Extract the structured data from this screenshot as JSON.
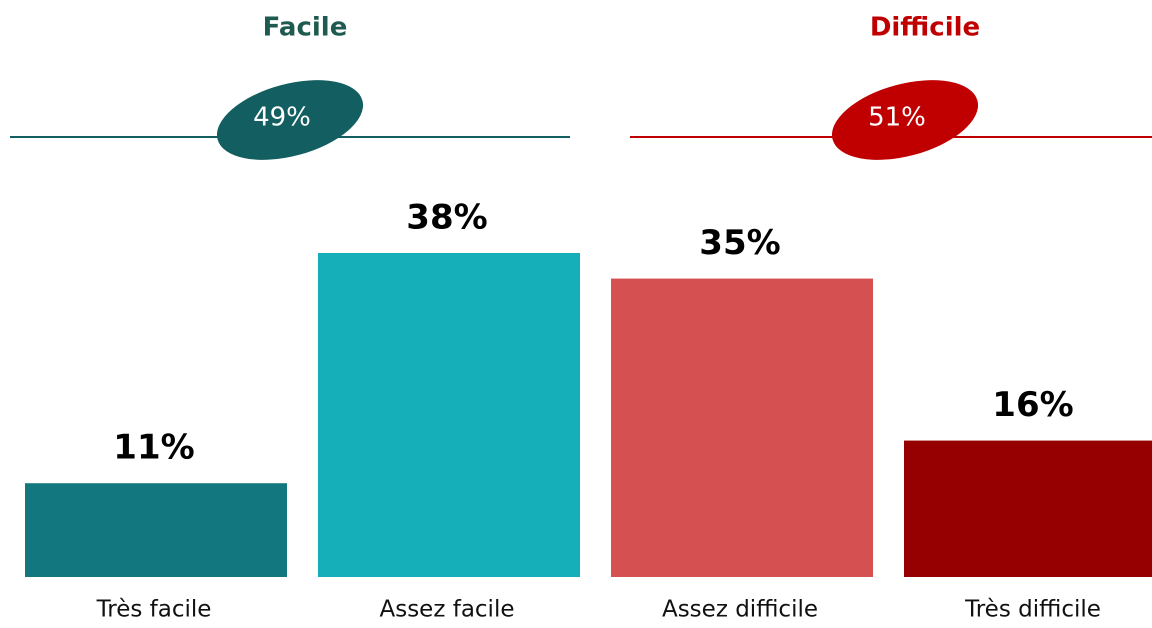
{
  "chart_data": {
    "type": "bar",
    "categories": [
      "Très facile",
      "Assez facile",
      "Assez difficile",
      "Très difficile"
    ],
    "values": [
      11,
      38,
      35,
      16
    ],
    "value_labels": [
      "11%",
      "38%",
      "35%",
      "16%"
    ],
    "colors": [
      "#13777f",
      "#14afb8",
      "#d55050",
      "#960000"
    ],
    "groups": [
      {
        "name": "Facile",
        "value": 49,
        "value_label": "49%",
        "color": "#135e60",
        "title_color": "#1e5a50"
      },
      {
        "name": "Difficile",
        "value": 51,
        "value_label": "51%",
        "color": "#c00000",
        "title_color": "#c00000"
      }
    ]
  }
}
